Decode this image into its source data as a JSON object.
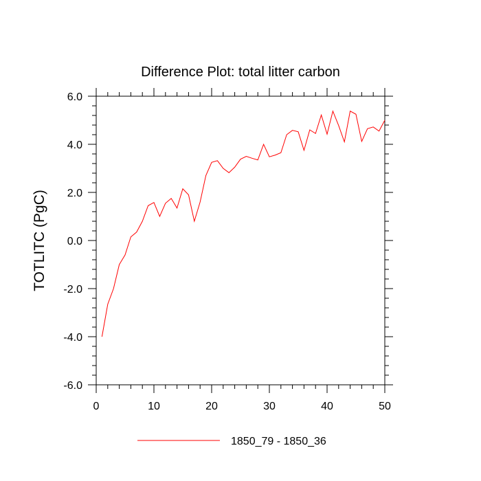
{
  "chart_data": {
    "type": "line",
    "title": "Difference Plot: total litter carbon",
    "xlabel": "",
    "ylabel": "TOTLITC  (PgC)",
    "xlim": [
      0,
      50
    ],
    "ylim": [
      -6.0,
      6.0
    ],
    "x_ticks": [
      0,
      10,
      20,
      30,
      40,
      50
    ],
    "x_tick_labels": [
      "0",
      "10",
      "20",
      "30",
      "40",
      "50"
    ],
    "y_ticks": [
      -6.0,
      -4.0,
      -2.0,
      0.0,
      2.0,
      4.0,
      6.0
    ],
    "y_tick_labels": [
      "-6.0",
      "-4.0",
      "-2.0",
      "0.0",
      "2.0",
      "4.0",
      "6.0"
    ],
    "grid": false,
    "legend_position": "bottom",
    "series": [
      {
        "name": "1850_79 - 1850_36",
        "color": "#ff0000",
        "x": [
          1,
          2,
          3,
          4,
          5,
          6,
          7,
          8,
          9,
          10,
          11,
          12,
          13,
          14,
          15,
          16,
          17,
          18,
          19,
          20,
          21,
          22,
          23,
          24,
          25,
          26,
          27,
          28,
          29,
          30,
          31,
          32,
          33,
          34,
          35,
          36,
          37,
          38,
          39,
          40,
          41,
          42,
          43,
          44,
          45,
          46,
          47,
          48,
          49,
          50
        ],
        "y": [
          -4.0,
          -2.65,
          -2.0,
          -1.0,
          -0.6,
          0.15,
          0.35,
          0.8,
          1.45,
          1.58,
          1.0,
          1.55,
          1.75,
          1.35,
          2.15,
          1.9,
          0.8,
          1.6,
          2.7,
          3.25,
          3.32,
          3.0,
          2.82,
          3.05,
          3.38,
          3.5,
          3.42,
          3.35,
          4.0,
          3.48,
          3.55,
          3.65,
          4.4,
          4.58,
          4.52,
          3.75,
          4.6,
          4.45,
          5.22,
          4.42,
          5.38,
          4.78,
          4.1,
          5.38,
          5.25,
          4.12,
          4.65,
          4.72,
          4.55,
          5.0
        ]
      }
    ]
  }
}
